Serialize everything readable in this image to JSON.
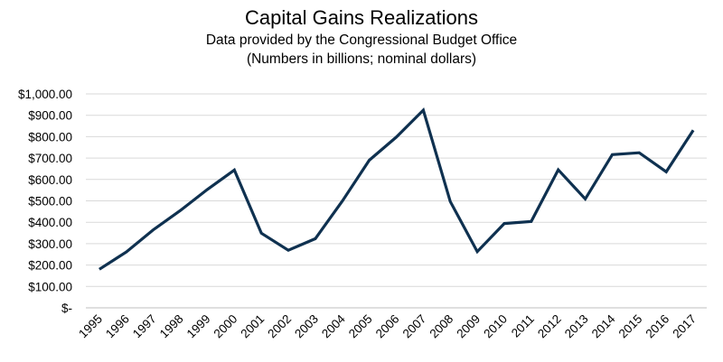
{
  "chart_data": {
    "type": "line",
    "title": "Capital Gains Realizations",
    "subtitle": "Data provided by the Congressional Budget Office",
    "subtitle2": "(Numbers in billions; nominal dollars)",
    "xlabel": "",
    "ylabel": "",
    "ylim": [
      0,
      1000
    ],
    "grid": true,
    "categories": [
      "1995",
      "1996",
      "1997",
      "1998",
      "1999",
      "2000",
      "2001",
      "2002",
      "2003",
      "2004",
      "2005",
      "2006",
      "2007",
      "2008",
      "2009",
      "2010",
      "2011",
      "2012",
      "2013",
      "2014",
      "2015",
      "2016",
      "2017"
    ],
    "series": [
      {
        "name": "Capital Gains Realizations",
        "color": "#0f3150",
        "values": [
          180,
          261,
          365,
          455,
          553,
          644,
          349,
          269,
          323,
          499,
          690,
          798,
          924,
          497,
          263,
          394,
          404,
          645,
          509,
          716,
          725,
          636,
          830
        ]
      }
    ],
    "y_tick_values": [
      0,
      100,
      200,
      300,
      400,
      500,
      600,
      700,
      800,
      900,
      1000
    ],
    "y_tick_labels": [
      "$-",
      "$100.00",
      "$200.00",
      "$300.00",
      "$400.00",
      "$500.00",
      "$600.00",
      "$700.00",
      "$800.00",
      "$900.00",
      "$1,000.00"
    ]
  }
}
